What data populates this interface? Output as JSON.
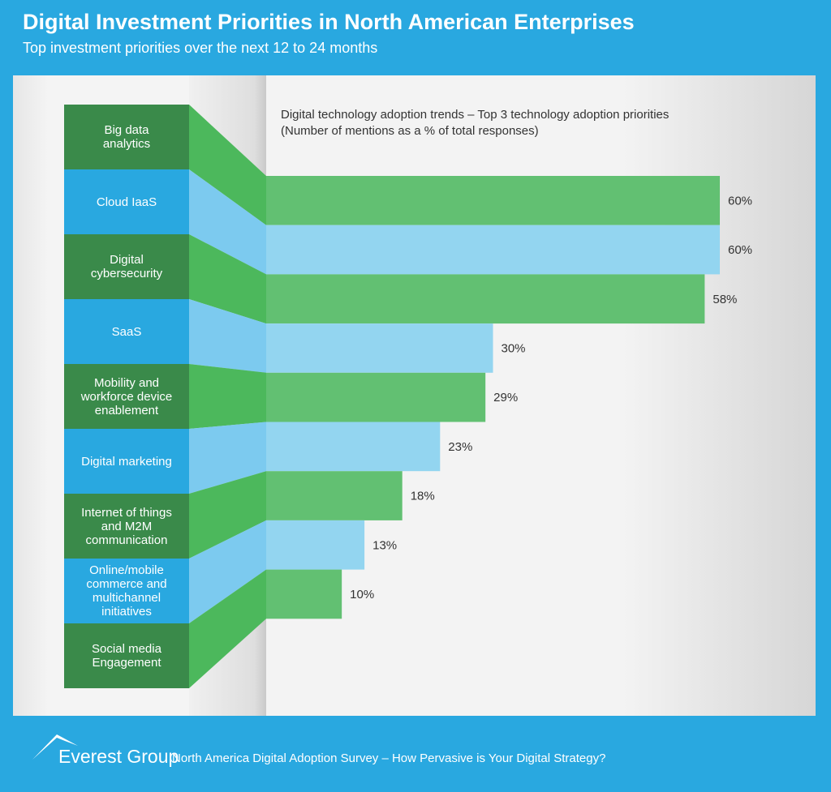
{
  "chart_data": {
    "type": "bar",
    "orientation": "horizontal",
    "title": "Digital Investment Priorities in North American Enterprises",
    "subtitle": "Top investment priorities over the next 12 to 24 months",
    "chart_heading": [
      "Digital technology adoption trends – Top 3 technology adoption priorities",
      "(Number of mentions as a % of total responses)"
    ],
    "categories": [
      "Big data\nanalytics",
      "Cloud IaaS",
      "Digital\ncybersecurity",
      "SaaS",
      "Mobility and\nworkforce device\nenablement",
      "Digital marketing",
      "Internet of things\nand M2M\ncommunication",
      "Online/mobile\ncommerce and\nmultichannel\ninitiatives",
      "Social media\nEngagement"
    ],
    "values": [
      60,
      60,
      58,
      30,
      29,
      23,
      18,
      13,
      10
    ],
    "value_labels": [
      "60%",
      "60%",
      "58%",
      "30%",
      "29%",
      "23%",
      "18%",
      "13%",
      "10%"
    ],
    "bar_colors": [
      "#62c072",
      "#93d5f0"
    ],
    "connector_colors": [
      "#4cb85c",
      "#7ccaef"
    ],
    "label_colors": [
      "#3a8a4a",
      "#29a8e0"
    ],
    "brand": "Everest Group",
    "source": "North America Digital Adoption Survey – How Pervasive is Your Digital Strategy?"
  }
}
